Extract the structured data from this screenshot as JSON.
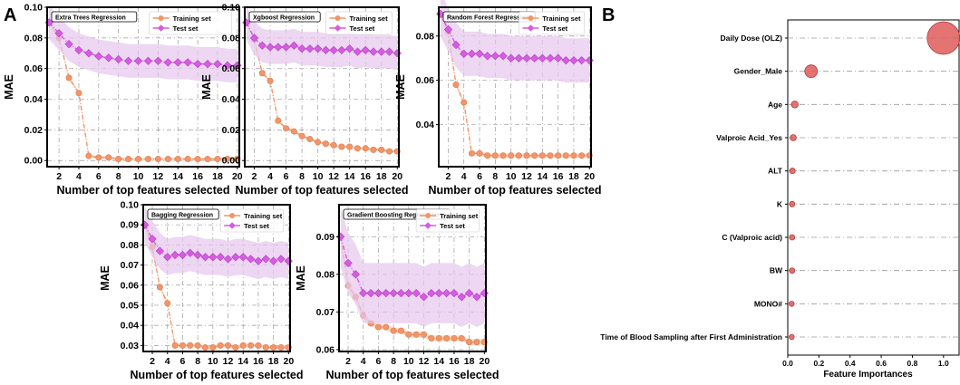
{
  "panel_labels": {
    "a": "A",
    "b": "B"
  },
  "colors": {
    "train": "#f0966a",
    "train_fill": "#f7c2a6",
    "test": "#d65ce3",
    "test_fill": "#e6c6ec",
    "bubble": "#e06060",
    "bubble_edge": "#b33838",
    "grid": "#9a9a9a"
  },
  "chart_data": [
    {
      "type": "line",
      "title": "Extra Trees Regression",
      "xlabel": "Number of top features selected",
      "ylabel": "MAE",
      "x": [
        1,
        2,
        3,
        4,
        5,
        6,
        7,
        8,
        9,
        10,
        11,
        12,
        13,
        14,
        15,
        16,
        17,
        18,
        19,
        20
      ],
      "xticks": [
        2,
        4,
        6,
        8,
        10,
        12,
        14,
        16,
        18,
        20
      ],
      "xtick_labels": [
        "2",
        "4",
        "6",
        "8",
        "10",
        "12",
        "14",
        "16",
        "18",
        "20"
      ],
      "xlim": [
        0.8,
        20.2
      ],
      "ylim": [
        -0.004,
        0.1
      ],
      "yticks": [
        0.0,
        0.02,
        0.04,
        0.06,
        0.08,
        0.1
      ],
      "ytick_labels": [
        "0.00",
        "0.02",
        "0.04",
        "0.06",
        "0.08",
        "0.10"
      ],
      "legend": [
        "Training set",
        "Test set"
      ],
      "series": [
        {
          "name": "Training set",
          "values": [
            0.09,
            0.08,
            0.054,
            0.044,
            0.003,
            0.002,
            0.002,
            0.001,
            0.001,
            0.001,
            0.001,
            0.001,
            0.001,
            0.001,
            0.001,
            0.001,
            0.001,
            0.001,
            0.001,
            0.001
          ],
          "band": 0.001
        },
        {
          "name": "Test set",
          "values": [
            0.09,
            0.083,
            0.076,
            0.072,
            0.07,
            0.068,
            0.067,
            0.066,
            0.065,
            0.065,
            0.065,
            0.065,
            0.064,
            0.064,
            0.064,
            0.063,
            0.063,
            0.063,
            0.062,
            0.062
          ],
          "band": 0.011
        }
      ]
    },
    {
      "type": "line",
      "title": "Xgboost Regression",
      "xlabel": "Number of top features selected",
      "ylabel": "MAE",
      "x": [
        1,
        2,
        3,
        4,
        5,
        6,
        7,
        8,
        9,
        10,
        11,
        12,
        13,
        14,
        15,
        16,
        17,
        18,
        19,
        20
      ],
      "xticks": [
        2,
        4,
        6,
        8,
        10,
        12,
        14,
        16,
        18,
        20
      ],
      "xtick_labels": [
        "2",
        "4",
        "6",
        "8",
        "10",
        "12",
        "14",
        "16",
        "18",
        "20"
      ],
      "xlim": [
        0.8,
        20.2
      ],
      "ylim": [
        -0.004,
        0.1
      ],
      "yticks": [
        0.0,
        0.02,
        0.04,
        0.06,
        0.08,
        0.1
      ],
      "ytick_labels": [
        "0.00",
        "0.02",
        "0.04",
        "0.06",
        "0.08",
        "0.10"
      ],
      "legend": [
        "Training set",
        "Test set"
      ],
      "series": [
        {
          "name": "Training set",
          "values": [
            0.09,
            0.079,
            0.057,
            0.052,
            0.026,
            0.021,
            0.019,
            0.016,
            0.014,
            0.012,
            0.011,
            0.01,
            0.009,
            0.009,
            0.008,
            0.008,
            0.007,
            0.007,
            0.006,
            0.006
          ],
          "band": 0.001
        },
        {
          "name": "Test set",
          "values": [
            0.09,
            0.08,
            0.075,
            0.074,
            0.074,
            0.074,
            0.075,
            0.073,
            0.073,
            0.073,
            0.072,
            0.072,
            0.072,
            0.073,
            0.071,
            0.072,
            0.071,
            0.071,
            0.071,
            0.07
          ],
          "band": 0.011
        }
      ]
    },
    {
      "type": "line",
      "title": "Random Forest Regression",
      "xlabel": "Number of top features selected",
      "ylabel": "MAE",
      "x": [
        1,
        2,
        3,
        4,
        5,
        6,
        7,
        8,
        9,
        10,
        11,
        12,
        13,
        14,
        15,
        16,
        17,
        18,
        19,
        20
      ],
      "xticks": [
        2,
        4,
        6,
        8,
        10,
        12,
        14,
        16,
        18,
        20
      ],
      "xtick_labels": [
        "2",
        "4",
        "6",
        "8",
        "10",
        "12",
        "14",
        "16",
        "18",
        "20"
      ],
      "xlim": [
        0.8,
        20.2
      ],
      "ylim": [
        0.021,
        0.093
      ],
      "yticks": [
        0.04,
        0.06,
        0.08
      ],
      "ytick_labels": [
        "0.04",
        "0.06",
        "0.08"
      ],
      "legend": [
        "Training set",
        "Test set"
      ],
      "series": [
        {
          "name": "Training set",
          "values": [
            0.09,
            0.082,
            0.058,
            0.05,
            0.027,
            0.027,
            0.026,
            0.026,
            0.026,
            0.026,
            0.026,
            0.026,
            0.026,
            0.026,
            0.026,
            0.026,
            0.026,
            0.026,
            0.026,
            0.026
          ],
          "band": 0.001
        },
        {
          "name": "Test set",
          "values": [
            0.09,
            0.083,
            0.076,
            0.072,
            0.072,
            0.072,
            0.071,
            0.071,
            0.071,
            0.07,
            0.07,
            0.07,
            0.07,
            0.07,
            0.07,
            0.07,
            0.069,
            0.069,
            0.069,
            0.069
          ],
          "band": 0.01
        }
      ]
    },
    {
      "type": "line",
      "title": "Bagging Regression",
      "xlabel": "Number of top features selected",
      "ylabel": "MAE",
      "x": [
        1,
        2,
        3,
        4,
        5,
        6,
        7,
        8,
        9,
        10,
        11,
        12,
        13,
        14,
        15,
        16,
        17,
        18,
        19,
        20
      ],
      "xticks": [
        2,
        4,
        6,
        8,
        10,
        12,
        14,
        16,
        18,
        20
      ],
      "xtick_labels": [
        "2",
        "4",
        "6",
        "8",
        "10",
        "12",
        "14",
        "16",
        "18",
        "20"
      ],
      "xlim": [
        0.8,
        20.2
      ],
      "ylim": [
        0.027,
        0.1
      ],
      "yticks": [
        0.03,
        0.04,
        0.05,
        0.06,
        0.07,
        0.08,
        0.09,
        0.1
      ],
      "ytick_labels": [
        "0.03",
        "0.04",
        "0.05",
        "0.06",
        "0.07",
        "0.08",
        "0.09",
        "0.10"
      ],
      "legend": [
        "Training set",
        "Test set"
      ],
      "series": [
        {
          "name": "Training set",
          "values": [
            0.09,
            0.079,
            0.059,
            0.051,
            0.03,
            0.03,
            0.03,
            0.03,
            0.029,
            0.029,
            0.03,
            0.03,
            0.029,
            0.03,
            0.03,
            0.03,
            0.029,
            0.029,
            0.029,
            0.029
          ],
          "band": 0.001
        },
        {
          "name": "Test set",
          "values": [
            0.09,
            0.083,
            0.077,
            0.074,
            0.075,
            0.075,
            0.076,
            0.075,
            0.074,
            0.074,
            0.074,
            0.073,
            0.074,
            0.074,
            0.073,
            0.072,
            0.073,
            0.072,
            0.073,
            0.072
          ],
          "band": 0.009
        }
      ]
    },
    {
      "type": "line",
      "title": "Gradient Boosting Regression",
      "xlabel": "Number of top features selected",
      "ylabel": "MAE",
      "x": [
        1,
        2,
        3,
        4,
        5,
        6,
        7,
        8,
        9,
        10,
        11,
        12,
        13,
        14,
        15,
        16,
        17,
        18,
        19,
        20
      ],
      "xticks": [
        2,
        4,
        6,
        8,
        10,
        12,
        14,
        16,
        18,
        20
      ],
      "xtick_labels": [
        "2",
        "4",
        "6",
        "8",
        "10",
        "12",
        "14",
        "16",
        "18",
        "20"
      ],
      "xlim": [
        0.8,
        20.2
      ],
      "ylim": [
        0.0595,
        0.0985
      ],
      "yticks": [
        0.06,
        0.07,
        0.08,
        0.09
      ],
      "ytick_labels": [
        "0.06",
        "0.07",
        "0.08",
        "0.09"
      ],
      "legend": [
        "Training set",
        "Test set"
      ],
      "series": [
        {
          "name": "Training set",
          "values": [
            0.09,
            0.077,
            0.074,
            0.069,
            0.067,
            0.066,
            0.066,
            0.065,
            0.065,
            0.064,
            0.064,
            0.064,
            0.063,
            0.063,
            0.063,
            0.063,
            0.063,
            0.062,
            0.062,
            0.062
          ],
          "band": 0.0008
        },
        {
          "name": "Test set",
          "values": [
            0.09,
            0.083,
            0.08,
            0.075,
            0.075,
            0.075,
            0.075,
            0.075,
            0.075,
            0.075,
            0.075,
            0.074,
            0.075,
            0.075,
            0.075,
            0.075,
            0.074,
            0.075,
            0.074,
            0.075
          ],
          "band": 0.008
        }
      ]
    },
    {
      "type": "scatter",
      "title": "",
      "xlabel": "Feature Importances",
      "ylabel": "",
      "xlim": [
        0.0,
        1.1
      ],
      "xticks": [
        0.0,
        0.2,
        0.4,
        0.6,
        0.8,
        1.0
      ],
      "xtick_labels": [
        "0.0",
        "0.2",
        "0.4",
        "0.6",
        "0.8",
        "1.0"
      ],
      "categories": [
        "Daily Dose (OLZ)",
        "Gender_Male",
        "Age",
        "Valproic Acid_Yes",
        "ALT",
        "K",
        "C (Valproic acid)",
        "BW",
        "MONO#",
        "Time of Blood Sampling after First Administration"
      ],
      "values": [
        1.0,
        0.15,
        0.045,
        0.035,
        0.03,
        0.028,
        0.028,
        0.028,
        0.025,
        0.025
      ]
    }
  ]
}
